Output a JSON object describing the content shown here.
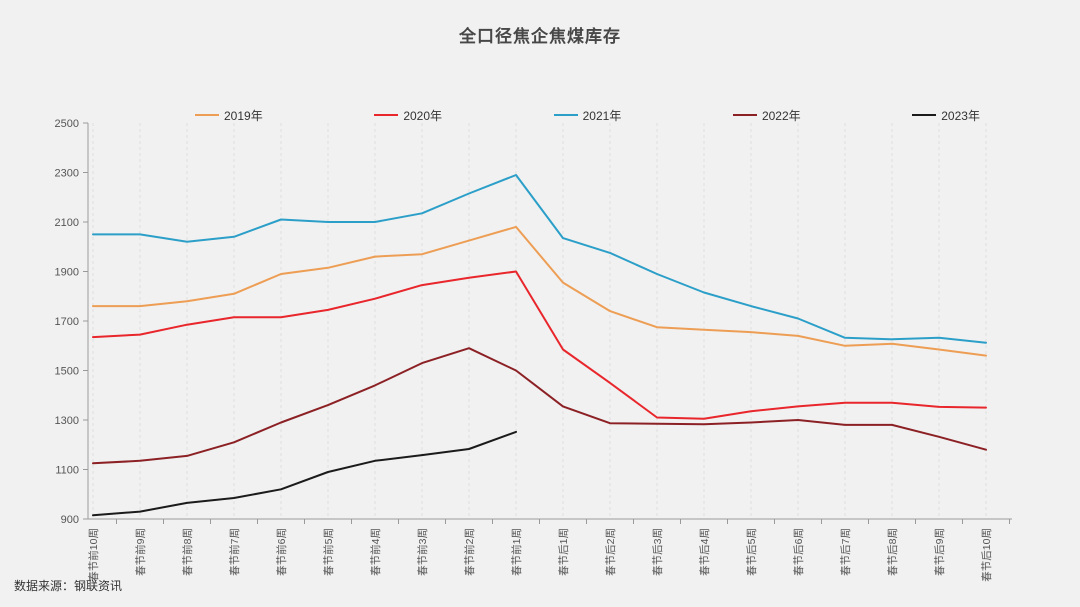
{
  "page": {
    "source_label": "数据来源：钢联资讯"
  },
  "chart_data": {
    "type": "line",
    "title": "全口径焦企焦煤库存",
    "legend_position": "top",
    "grid": "vertical-dashed",
    "ylim": [
      900,
      2500
    ],
    "ytick_step": 200,
    "yticks": [
      900,
      1100,
      1300,
      1500,
      1700,
      1900,
      2100,
      2300,
      2500
    ],
    "categories": [
      "春节前10周",
      "春节前9周",
      "春节前8周",
      "春节前7周",
      "春节前6周",
      "春节前5周",
      "春节前4周",
      "春节前3周",
      "春节前2周",
      "春节前1周",
      "春节后1周",
      "春节后2周",
      "春节后3周",
      "春节后4周",
      "春节后5周",
      "春节后6周",
      "春节后7周",
      "春节后8周",
      "春节后9周",
      "春节后10周"
    ],
    "series": [
      {
        "name": "2019年",
        "color": "#ED9E54",
        "values": [
          1760,
          1760,
          1780,
          1810,
          1890,
          1915,
          1960,
          1970,
          2025,
          2080,
          1855,
          1740,
          1675,
          1665,
          1655,
          1640,
          1600,
          1608,
          1585,
          1560
        ]
      },
      {
        "name": "2020年",
        "color": "#E8262B",
        "values": [
          1635,
          1645,
          1685,
          1715,
          1715,
          1745,
          1790,
          1845,
          1875,
          1900,
          1585,
          1450,
          1310,
          1305,
          1335,
          1355,
          1370,
          1370,
          1353,
          1350
        ]
      },
      {
        "name": "2021年",
        "color": "#2C9FC9",
        "values": [
          2050,
          2050,
          2020,
          2040,
          2110,
          2100,
          2100,
          2135,
          2215,
          2290,
          2035,
          1975,
          1890,
          1815,
          1760,
          1710,
          1632,
          1626,
          1632,
          1612
        ]
      },
      {
        "name": "2022年",
        "color": "#8C2125",
        "values": [
          1125,
          1135,
          1155,
          1210,
          1290,
          1360,
          1440,
          1530,
          1590,
          1500,
          1355,
          1287,
          1285,
          1283,
          1290,
          1300,
          1280,
          1280,
          1232,
          1180
        ]
      },
      {
        "name": "2023年",
        "color": "#1B1B1B",
        "values": [
          915,
          930,
          965,
          985,
          1020,
          1090,
          1135,
          1158,
          1183,
          1252
        ]
      }
    ]
  }
}
